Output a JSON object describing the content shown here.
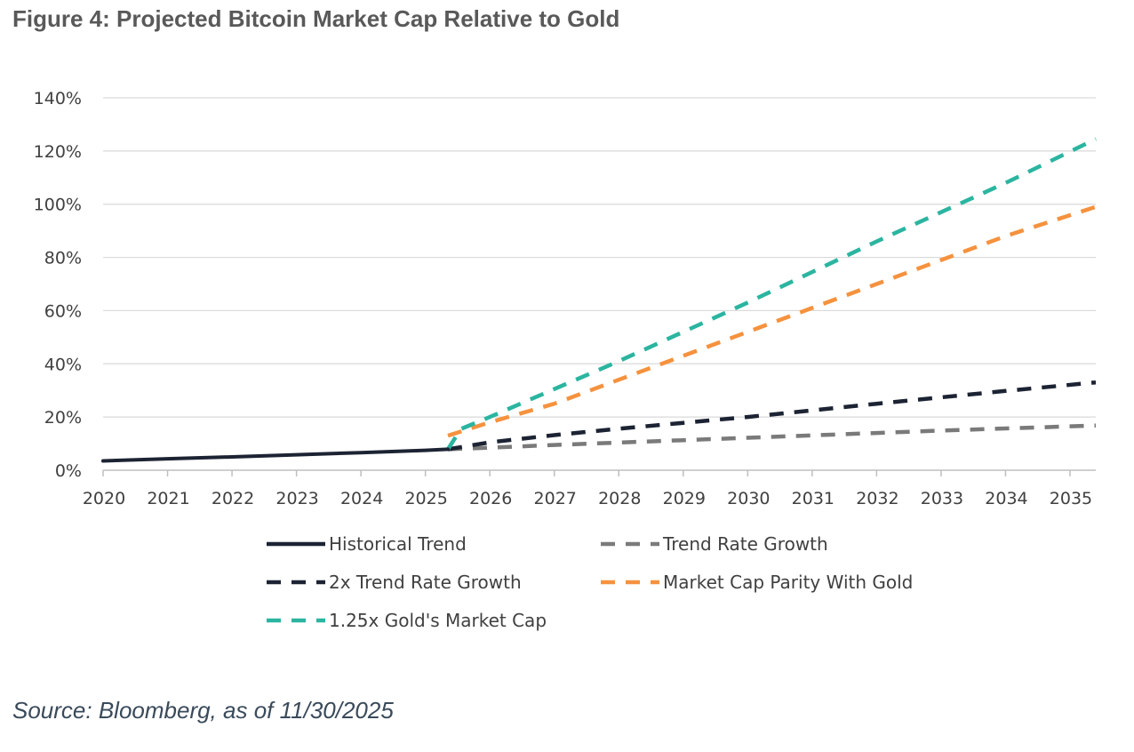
{
  "figure": {
    "title": "Figure 4: Projected Bitcoin Market Cap Relative to Gold",
    "source": "Source: Bloomberg, as of 11/30/2025"
  },
  "chart_data": {
    "type": "line",
    "title": "Figure 4: Projected Bitcoin Market Cap Relative to Gold",
    "xlabel": "",
    "ylabel": "",
    "xlim": [
      2020,
      2035.4
    ],
    "ylim": [
      0,
      140
    ],
    "grid": true,
    "x_ticks": [
      2020,
      2021,
      2022,
      2023,
      2024,
      2025,
      2026,
      2027,
      2028,
      2029,
      2030,
      2031,
      2032,
      2033,
      2034,
      2035
    ],
    "x_tick_labels": [
      "2020",
      "2021",
      "2022",
      "2023",
      "2024",
      "2025",
      "2026",
      "2027",
      "2028",
      "2029",
      "2030",
      "2031",
      "2032",
      "2033",
      "2034",
      "2035"
    ],
    "y_ticks": [
      0,
      20,
      40,
      60,
      80,
      100,
      120,
      140
    ],
    "y_tick_labels": [
      "0%",
      "20%",
      "40%",
      "60%",
      "80%",
      "100%",
      "120%",
      "140%"
    ],
    "legend_position": "bottom",
    "series": [
      {
        "name": "Historical Trend",
        "style": "solid",
        "color": "#1c2333",
        "x": [
          2020,
          2021,
          2022,
          2023,
          2024,
          2025,
          2025.35
        ],
        "y": [
          3.5,
          4.3,
          5.0,
          5.8,
          6.6,
          7.5,
          7.9
        ]
      },
      {
        "name": "Trend Rate Growth",
        "style": "dashed",
        "color": "#7a7a7a",
        "x": [
          2025.35,
          2026,
          2027,
          2028,
          2029,
          2030,
          2031,
          2032,
          2033,
          2034,
          2035.4
        ],
        "y": [
          7.9,
          8.5,
          9.5,
          10.4,
          11.3,
          12.2,
          13.1,
          14.0,
          14.9,
          15.7,
          16.8
        ]
      },
      {
        "name": "2x Trend Rate Growth",
        "style": "dashed",
        "color": "#1c2333",
        "x": [
          2025.35,
          2026,
          2027,
          2028,
          2029,
          2030,
          2031,
          2032,
          2033,
          2034,
          2035.4
        ],
        "y": [
          7.9,
          10.5,
          13.2,
          15.6,
          17.8,
          20.0,
          22.5,
          25.0,
          27.4,
          29.8,
          33.0
        ]
      },
      {
        "name": "Market Cap Parity With Gold",
        "style": "dashed",
        "color": "#f5923e",
        "x": [
          2025.35,
          2026,
          2027,
          2028,
          2029,
          2030,
          2031,
          2032,
          2033,
          2034,
          2035.4
        ],
        "y": [
          13.0,
          18.0,
          25.0,
          34.0,
          43.0,
          52.0,
          61.0,
          70.0,
          79.0,
          88.0,
          99.0
        ]
      },
      {
        "name": "1.25x Gold's Market Cap",
        "style": "dashed",
        "color": "#2bb5a0",
        "x": [
          2025.35,
          2025.55,
          2026,
          2027,
          2028,
          2029,
          2030,
          2031,
          2032,
          2033,
          2034,
          2035.4
        ],
        "y": [
          7.9,
          15.5,
          20.0,
          30.5,
          41.0,
          52.0,
          63.0,
          74.5,
          86.0,
          97.0,
          108.0,
          124.5
        ]
      }
    ]
  }
}
